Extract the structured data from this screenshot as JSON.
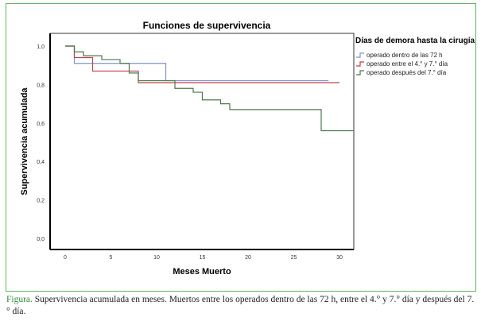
{
  "chart_data": {
    "type": "line",
    "title": "Funciones de supervivencia",
    "xlabel": "Meses Muerto",
    "ylabel": "Supervivencia acumulada",
    "xlim": [
      -2,
      31.5
    ],
    "ylim": [
      0,
      1.0
    ],
    "xticks": [
      0,
      5,
      10,
      15,
      20,
      25,
      30
    ],
    "xtick_labels": [
      "0",
      "5",
      "10",
      "15",
      "20",
      "25",
      "30"
    ],
    "yticks": [
      0,
      0.2,
      0.4,
      0.6,
      0.8,
      1.0
    ],
    "ytick_labels": [
      "0,0",
      "0,2",
      "0,4",
      "0,6",
      "0,8",
      "1,0"
    ],
    "legend_title": "Días de demora hasta la cirugía",
    "legend_position": "right",
    "series": [
      {
        "name": "operado dentro de las 72 h",
        "color": "#7f93c8",
        "steps": [
          [
            0,
            1.0
          ],
          [
            1,
            0.91
          ],
          [
            11,
            0.82
          ],
          [
            28.8,
            0.82
          ]
        ]
      },
      {
        "name": "operado entre el 4.° y 7.° día",
        "color": "#c0404a",
        "steps": [
          [
            0,
            1.0
          ],
          [
            1,
            0.94
          ],
          [
            3,
            0.87
          ],
          [
            8,
            0.81
          ],
          [
            30,
            0.81
          ]
        ]
      },
      {
        "name": "operado después del 7.° día",
        "color": "#4a7a4a",
        "steps": [
          [
            0,
            1.0
          ],
          [
            1,
            0.97
          ],
          [
            2,
            0.95
          ],
          [
            4,
            0.93
          ],
          [
            6,
            0.91
          ],
          [
            7,
            0.86
          ],
          [
            8,
            0.82
          ],
          [
            12,
            0.78
          ],
          [
            14,
            0.76
          ],
          [
            15,
            0.72
          ],
          [
            17,
            0.7
          ],
          [
            18,
            0.67
          ],
          [
            28,
            0.56
          ],
          [
            31.5,
            0.56
          ]
        ]
      }
    ]
  },
  "caption": {
    "label": "Figura.",
    "text": " Supervivencia acumulada en meses. Muertos entre los operados dentro de las 72 h, entre el 4.° y 7.° día y después del 7.° día."
  }
}
